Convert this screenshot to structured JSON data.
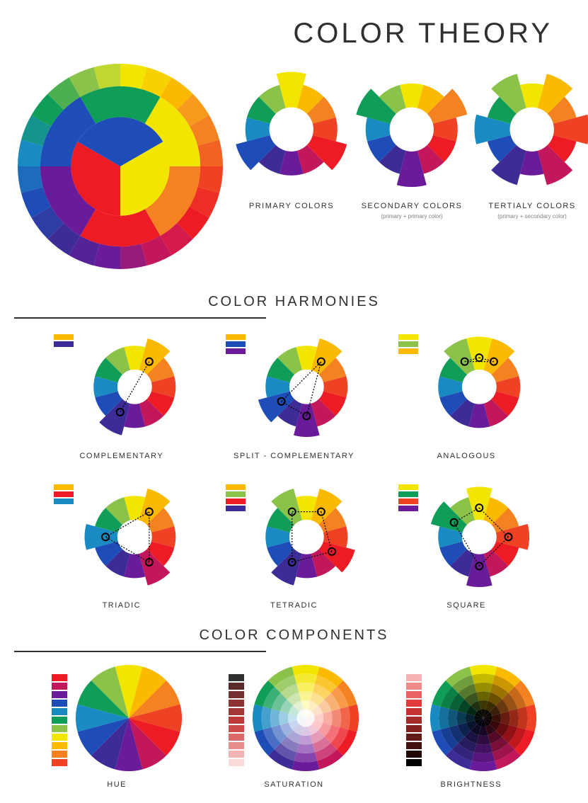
{
  "title": "COLOR THEORY",
  "section_harmonies": "COLOR HARMONIES",
  "section_components": "COLOR COMPONENTS",
  "wheel12": [
    "#f2e600",
    "#fbb900",
    "#f58220",
    "#ef4123",
    "#ed1c24",
    "#c2185b",
    "#6a1b9a",
    "#3f2b96",
    "#1e4db7",
    "#1a8ac2",
    "#0f9d58",
    "#8bc34a"
  ],
  "wheel24_outer": [
    "#f2e600",
    "#f9d000",
    "#fbb900",
    "#f89b1c",
    "#f58220",
    "#f26222",
    "#ef4123",
    "#ee2e24",
    "#ed1c24",
    "#d41a4a",
    "#c2185b",
    "#961b7a",
    "#6a1b9a",
    "#542398",
    "#3f2b96",
    "#2e3ca6",
    "#1e4db7",
    "#1c6bbc",
    "#1a8ac2",
    "#15938d",
    "#0f9d58",
    "#4db050",
    "#8bc34a",
    "#bfd730"
  ],
  "primary_center": [
    "#1e4db7",
    "#f2e600",
    "#ed1c24"
  ],
  "secondary_center": [
    "#0f9d58",
    "#6a1b9a",
    "#f58220"
  ],
  "type_wheels": {
    "primary": {
      "label": "PRIMARY\nCOLORS",
      "sublabel": "",
      "highlight": [
        0,
        4,
        8
      ]
    },
    "secondary": {
      "label": "SECONDARY COLORS",
      "sublabel": "(primary + primary color)",
      "highlight": [
        2,
        6,
        10
      ]
    },
    "tertiary": {
      "label": "TERTIALY COLORS",
      "sublabel": "(primary + secondary color)",
      "highlight": [
        1,
        3,
        5,
        7,
        9,
        11
      ]
    }
  },
  "harmonies": [
    {
      "name": "COMPLEMENTARY",
      "highlight": [
        1,
        7
      ],
      "swatches": [
        "#fbb900",
        "#3f2b96"
      ]
    },
    {
      "name": "SPLIT - COMPLEMENTARY",
      "highlight": [
        1,
        6,
        8
      ],
      "swatches": [
        "#fbb900",
        "#1e4db7",
        "#6a1b9a"
      ]
    },
    {
      "name": "ANALOGOUS",
      "highlight": [
        0,
        1,
        11
      ],
      "swatches": [
        "#f2e600",
        "#8bc34a",
        "#fbb900"
      ]
    },
    {
      "name": "TRIADIC",
      "highlight": [
        1,
        5,
        9
      ],
      "swatches": [
        "#fbb900",
        "#ed1c24",
        "#1a8ac2"
      ]
    },
    {
      "name": "TETRADIC",
      "highlight": [
        1,
        4,
        7,
        11
      ],
      "swatches": [
        "#fbb900",
        "#8bc34a",
        "#ed1c24",
        "#3f2b96"
      ]
    },
    {
      "name": "SQUARE",
      "highlight": [
        0,
        3,
        6,
        10
      ],
      "swatches": [
        "#f2e600",
        "#0f9d58",
        "#ef4123",
        "#6a1b9a"
      ]
    }
  ],
  "components": {
    "hue": {
      "label": "HUE",
      "bar": [
        "#ed1c24",
        "#c2185b",
        "#6a1b9a",
        "#1e4db7",
        "#1a8ac2",
        "#0f9d58",
        "#8bc34a",
        "#f2e600",
        "#fbb900",
        "#f58220",
        "#ef4123"
      ]
    },
    "saturation": {
      "label": "SATURATION",
      "bar": [
        "#303030",
        "#5a2a2a",
        "#742f2f",
        "#8d3333",
        "#a53636",
        "#bd3838",
        "#cf4a4a",
        "#dc6a6a",
        "#e88d8d",
        "#f2b3b3",
        "#fad9d9"
      ]
    },
    "brightness": {
      "label": "BRIGHTNESS",
      "bar": [
        "#f7b3b3",
        "#f08a8a",
        "#e96161",
        "#e23b3b",
        "#c63333",
        "#a52a2a",
        "#842222",
        "#631a1a",
        "#421111",
        "#210808",
        "#000000"
      ]
    }
  },
  "style": {
    "background": "#ffffff",
    "text_color": "#303030",
    "connector_color": "#000000",
    "node_stroke": "#000000",
    "main_wheel_radius": 145,
    "small_wheel_radius": 65,
    "harmony_wheel_radius": 58,
    "component_wheel_radius": 75
  }
}
